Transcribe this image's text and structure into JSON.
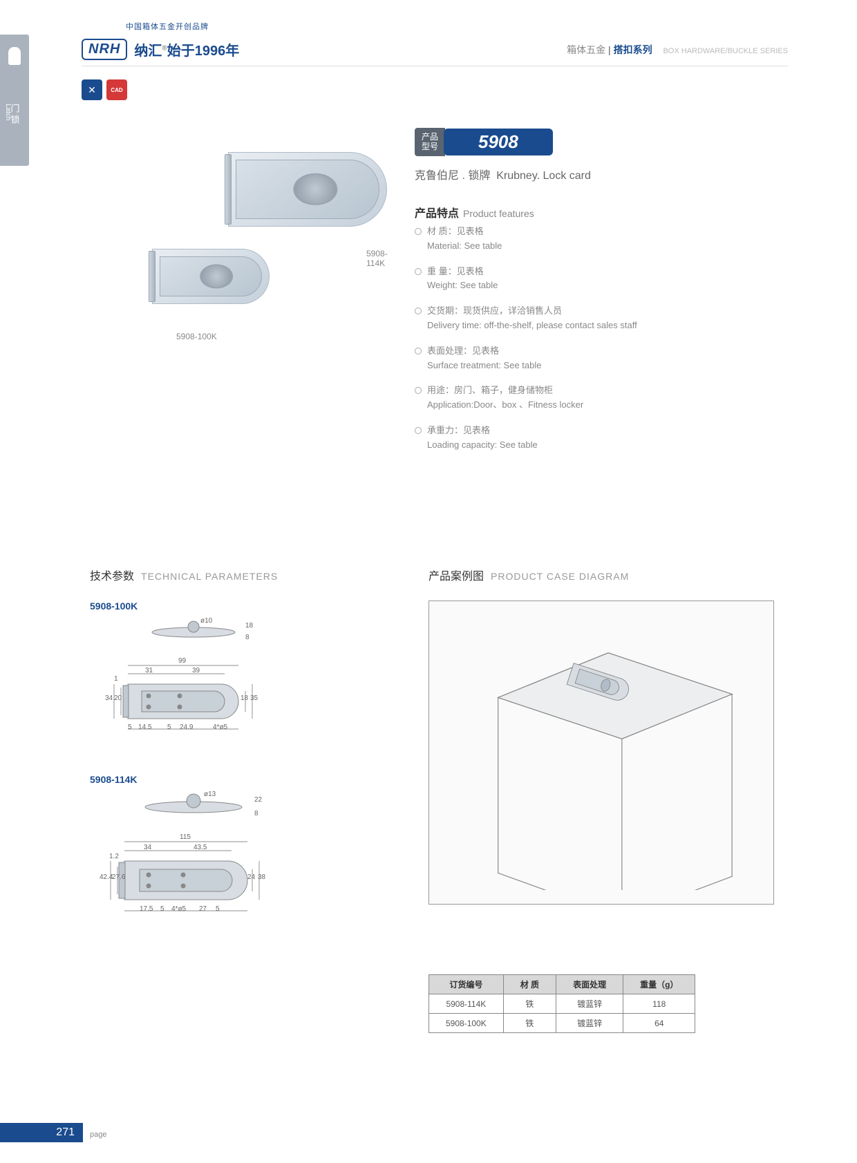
{
  "side": {
    "cn": "门锁",
    "en": "Latch"
  },
  "header": {
    "logo": "NRH",
    "cn": "纳汇",
    "since": "始于1996年",
    "sub": "中国箱体五金开创品牌",
    "rcn1": "箱体五金",
    "rcn2": "搭扣系列",
    "ren": "BOX HARDWARE/BUCKLE SERIES"
  },
  "badges": {
    "cad": "CAD"
  },
  "images": {
    "lbl_lg": "5908-114K",
    "lbl_sm": "5908-100K"
  },
  "product": {
    "label": "产品\n型号",
    "number": "5908",
    "name_cn": "克鲁伯尼 . 锁牌",
    "name_en": "Krubney. Lock card"
  },
  "features": {
    "title_cn": "产品特点",
    "title_en": "Product features",
    "items": [
      {
        "cn": "材 质：见表格",
        "en": "Material: See table"
      },
      {
        "cn": "重 量：见表格",
        "en": "Weight: See table"
      },
      {
        "cn": "交货期：现货供应，详洽销售人员",
        "en": "Delivery time: off-the-shelf, please contact sales staff"
      },
      {
        "cn": "表面处理：见表格",
        "en": "Surface treatment:  See table"
      },
      {
        "cn": "用途：房门、箱子，健身储物柜",
        "en": "Application:Door、box 、Fitness locker"
      },
      {
        "cn": "承重力：见表格",
        "en": "Loading capacity: See table"
      }
    ]
  },
  "tech": {
    "title_cn": "技术参数",
    "title_en": "TECHNICAL PARAMETERS",
    "m1": {
      "name": "5908-100K",
      "d": {
        "phi": "ø10",
        "h1": "18",
        "h2": "8",
        "w": "99",
        "w1": "31",
        "w2": "39",
        "t": "1",
        "ht": "34",
        "hi": "20",
        "b1": "5",
        "b2": "14.5",
        "b3": "5",
        "b4": "24.9",
        "hole": "4*ø5",
        "r1": "18",
        "r2": "35"
      }
    },
    "m2": {
      "name": "5908-114K",
      "d": {
        "phi": "ø13",
        "h1": "22",
        "h2": "8",
        "w": "115",
        "w1": "34",
        "w2": "43.5",
        "t": "1.2",
        "ht": "42.4",
        "hi": "27.6",
        "b1": "17.5",
        "b2": "5",
        "hole": "4*ø5",
        "b3": "27",
        "b4": "5",
        "r1": "24",
        "r2": "38"
      }
    }
  },
  "case": {
    "title_cn": "产品案例图",
    "title_en": "PRODUCT CASE DIAGRAM"
  },
  "table": {
    "headers": [
      "订货编号",
      "材    质",
      "表面处理",
      "重量（g）"
    ],
    "rows": [
      [
        "5908-114K",
        "铁",
        "镀蓝锌",
        "118"
      ],
      [
        "5908-100K",
        "铁",
        "镀蓝锌",
        "64"
      ]
    ]
  },
  "page": {
    "num": "271",
    "label": "page"
  }
}
